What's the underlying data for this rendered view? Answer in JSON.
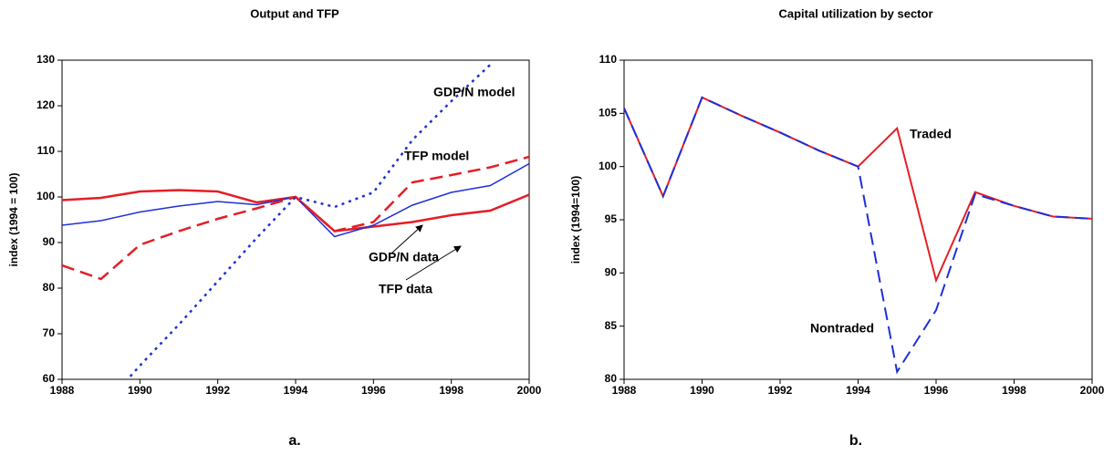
{
  "chart_data": [
    {
      "type": "line",
      "title": "Output and TFP",
      "y_label": "index (1994 = 100)",
      "caption": "a.",
      "x": [
        1988,
        1989,
        1990,
        1991,
        1992,
        1993,
        1994,
        1995,
        1996,
        1997,
        1998,
        1999,
        2000
      ],
      "xlim": [
        1988,
        2000
      ],
      "xticks": [
        1988,
        1990,
        1992,
        1994,
        1996,
        1998,
        2000
      ],
      "ylim": [
        60,
        130
      ],
      "yticks": [
        60,
        70,
        80,
        90,
        100,
        110,
        120,
        130
      ],
      "series": [
        {
          "name": "TFP data",
          "color": "#e41e26",
          "style": "solid",
          "width": 2.5,
          "values": [
            99.3,
            99.8,
            101.2,
            101.5,
            101.2,
            98.8,
            100,
            92.5,
            93.5,
            94.5,
            96,
            97,
            100.5
          ]
        },
        {
          "name": "GDP/N data",
          "color": "#1f2fd6",
          "style": "solid",
          "width": 1.5,
          "values": [
            93.8,
            94.8,
            96.7,
            98,
            99,
            98.3,
            100,
            91.3,
            93.8,
            98.2,
            101,
            102.5,
            107.3
          ]
        },
        {
          "name": "TFP model",
          "color": "#e41e26",
          "style": "dashed",
          "width": 2.5,
          "values": [
            85,
            82,
            89.5,
            92.5,
            95.2,
            97.5,
            100,
            92.5,
            94.5,
            103.2,
            104.8,
            106.5,
            108.8
          ]
        },
        {
          "name": "GDP/N model",
          "color": "#1f2fd6",
          "style": "dotted",
          "width": 2.5,
          "values": [
            null,
            53.5,
            63,
            72,
            81.5,
            91,
            100,
            97.8,
            101,
            112.5,
            121,
            129,
            null
          ]
        }
      ],
      "annotations": [
        "GDP/N model",
        "TFP model",
        "GDP/N data",
        "TFP data"
      ]
    },
    {
      "type": "line",
      "title": "Capital utilization by sector",
      "y_label": "index (1994=100)",
      "caption": "b.",
      "x": [
        1988,
        1989,
        1990,
        1991,
        1992,
        1993,
        1994,
        1995,
        1996,
        1997,
        1998,
        1999,
        2000
      ],
      "xlim": [
        1988,
        2000
      ],
      "xticks": [
        1988,
        1990,
        1992,
        1994,
        1996,
        1998,
        2000
      ],
      "ylim": [
        80,
        110
      ],
      "yticks": [
        80,
        85,
        90,
        95,
        100,
        105,
        110
      ],
      "series": [
        {
          "name": "Traded",
          "color": "#e41e26",
          "style": "solid",
          "width": 2,
          "values": [
            105.5,
            97.2,
            106.5,
            104.8,
            103.2,
            101.5,
            100,
            103.6,
            89.3,
            97.6,
            96.3,
            95.3,
            95.1
          ]
        },
        {
          "name": "Nontraded",
          "color": "#1f2fd6",
          "style": "dashed",
          "width": 2,
          "values": [
            105.5,
            97.2,
            106.5,
            104.8,
            103.2,
            101.5,
            100,
            80.7,
            86.5,
            97.4,
            96.3,
            95.3,
            95.1
          ]
        }
      ],
      "annotations": [
        "Traded",
        "Nontraded"
      ]
    }
  ]
}
